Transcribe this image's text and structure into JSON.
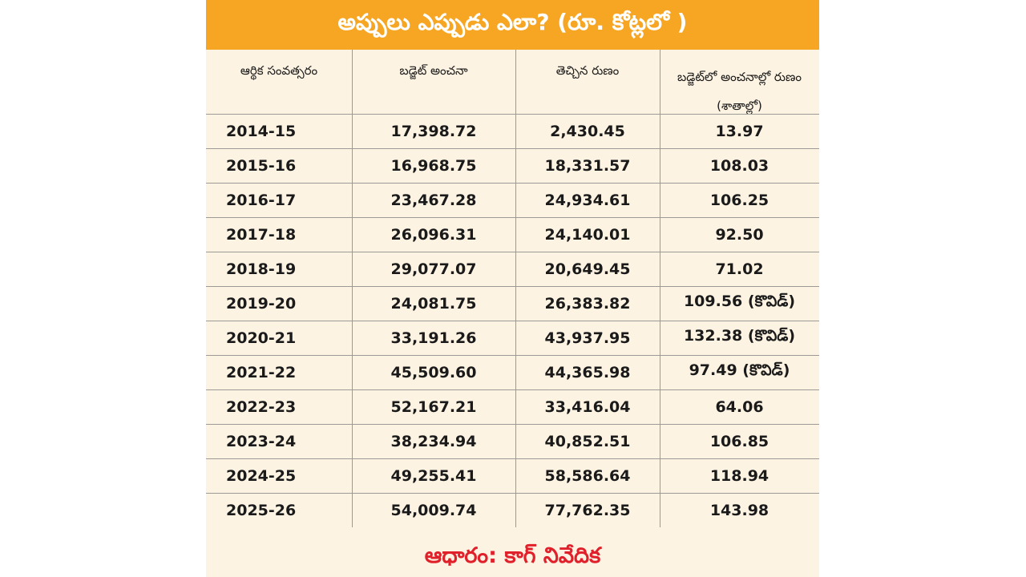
{
  "header": {
    "title": "అప్పులు ఎప్పుడు ఎలా? (రూ. కోట్లలో )"
  },
  "table": {
    "columns": [
      "ఆర్థిక సంవత్సరం",
      "బడ్జెట్ అంచనా",
      "తెచ్చిన రుణం",
      "బడ్జెట్‌లో అంచనాల్లో రుణం (శాతాల్లో)"
    ],
    "rows": [
      [
        "2014-15",
        "17,398.72",
        "2,430.45",
        "13.97"
      ],
      [
        "2015-16",
        "16,968.75",
        "18,331.57",
        "108.03"
      ],
      [
        "2016-17",
        "23,467.28",
        "24,934.61",
        "106.25"
      ],
      [
        "2017-18",
        "26,096.31",
        "24,140.01",
        "92.50"
      ],
      [
        "2018-19",
        "29,077.07",
        "20,649.45",
        "71.02"
      ],
      [
        "2019-20",
        "24,081.75",
        "26,383.82",
        "109.56 (కొవిడ్)"
      ],
      [
        "2020-21",
        "33,191.26",
        "43,937.95",
        "132.38 (కొవిడ్)"
      ],
      [
        "2021-22",
        "45,509.60",
        "44,365.98",
        "97.49 (కొవిడ్)"
      ],
      [
        "2022-23",
        "52,167.21",
        "33,416.04",
        "64.06"
      ],
      [
        "2023-24",
        "38,234.94",
        "40,852.51",
        "106.85"
      ],
      [
        "2024-25",
        "49,255.41",
        "58,586.64",
        "118.94"
      ],
      [
        "2025-26",
        "54,009.74",
        "77,762.35",
        "143.98"
      ]
    ]
  },
  "footer": {
    "source": "ఆధారం: కాగ్ నివేదిక"
  }
}
